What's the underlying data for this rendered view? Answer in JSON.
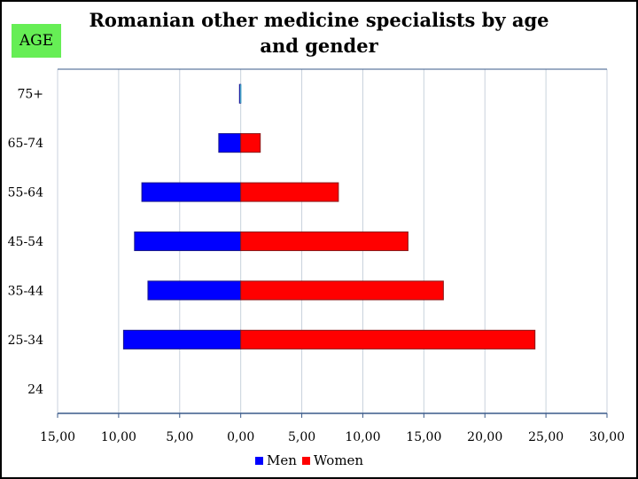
{
  "badge": {
    "label": "AGE"
  },
  "chart_data": {
    "type": "bar",
    "orientation": "horizontal",
    "subtype": "population-pyramid",
    "title": "Romanian other medicine specialists by age and gender",
    "categories": [
      "24",
      "25-34",
      "35-44",
      "45-54",
      "55-64",
      "65-74",
      "75+"
    ],
    "series": [
      {
        "name": "Men",
        "color": "#0000ff",
        "values": [
          0,
          9.6,
          7.6,
          8.7,
          8.1,
          1.8,
          0.1
        ],
        "side": "left"
      },
      {
        "name": "Women",
        "color": "#ff0000",
        "values": [
          0,
          24.1,
          16.6,
          13.7,
          8.0,
          1.6,
          0.0
        ],
        "side": "right"
      }
    ],
    "xlim": [
      -15,
      30
    ],
    "xticks": [
      -15,
      -10,
      -5,
      0,
      5,
      10,
      15,
      20,
      25,
      30
    ],
    "xtick_labels": [
      "15,00",
      "10,00",
      "5,00",
      "0,00",
      "5,00",
      "10,00",
      "15,00",
      "20,00",
      "25,00",
      "30,00"
    ],
    "xlabel": "",
    "ylabel": "",
    "grid": true,
    "legend": "bottom"
  }
}
